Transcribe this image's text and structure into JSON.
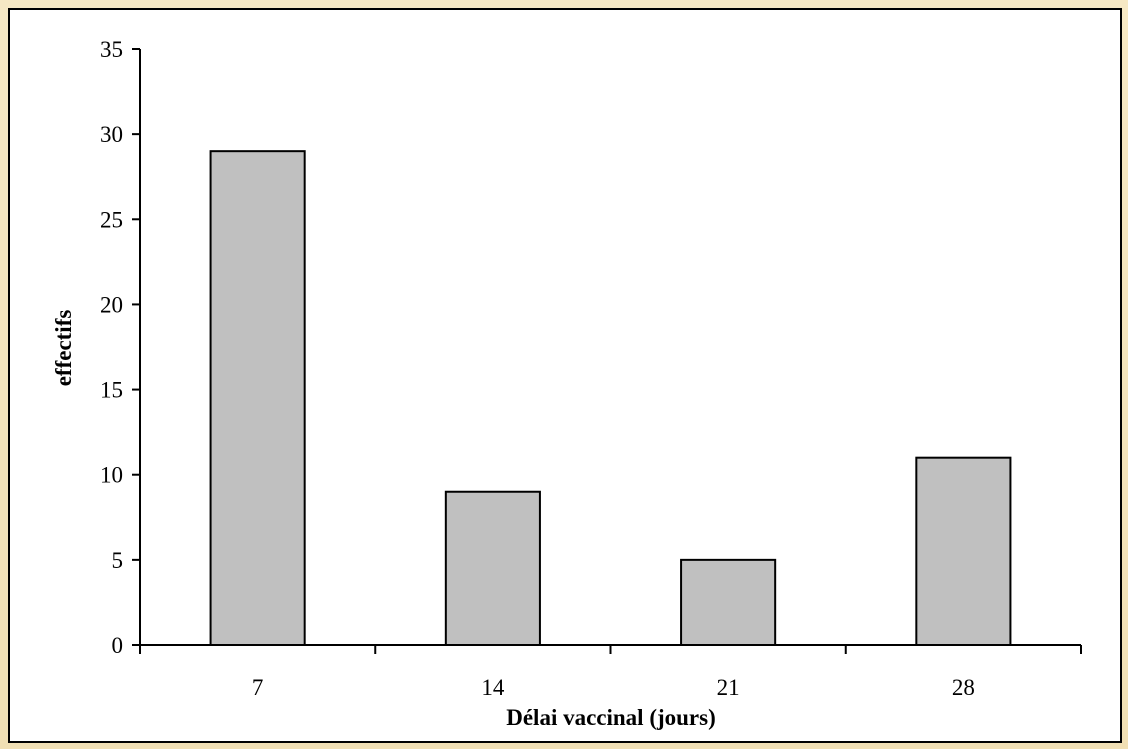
{
  "chart_data": {
    "type": "bar",
    "categories": [
      "7",
      "14",
      "21",
      "28"
    ],
    "values": [
      29,
      9,
      5,
      11
    ],
    "title": "",
    "xlabel": "Délai vaccinal (jours)",
    "ylabel": "effectifs",
    "ylim": [
      0,
      35
    ],
    "yticks": [
      "0",
      "5",
      "10",
      "15",
      "20",
      "25",
      "30",
      "35"
    ],
    "grid": false,
    "legend": "none",
    "colors": {
      "bar_fill": "#c0c0c0",
      "bar_stroke": "#000000",
      "frame_background": "#f1e2b9",
      "plot_background": "#ffffff"
    }
  }
}
